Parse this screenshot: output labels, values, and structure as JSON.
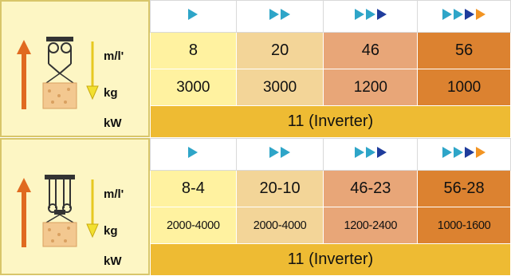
{
  "units": {
    "speed": "m/l'",
    "load": "kg",
    "power": "kW"
  },
  "colors": {
    "speed1": "#2ea5c8",
    "speed2": "#2ea5c8",
    "speed3": "#1f3c9c",
    "speed4": "#f29422",
    "up_arrow": "#e06a20",
    "down_arrow": "#f2e030"
  },
  "blocks": [
    {
      "speed_icons": [
        1,
        2,
        3,
        4
      ],
      "speeds": [
        "8",
        "20",
        "46",
        "56"
      ],
      "loads": [
        "3000",
        "3000",
        "1200",
        "1000"
      ],
      "power": "11 (Inverter)"
    },
    {
      "speed_icons": [
        1,
        2,
        3,
        4
      ],
      "speeds": [
        "8-4",
        "20-10",
        "46-23",
        "56-28"
      ],
      "loads": [
        "2000-4000",
        "2000-4000",
        "1200-2400",
        "1000-1600"
      ],
      "power": "11 (Inverter)"
    }
  ]
}
